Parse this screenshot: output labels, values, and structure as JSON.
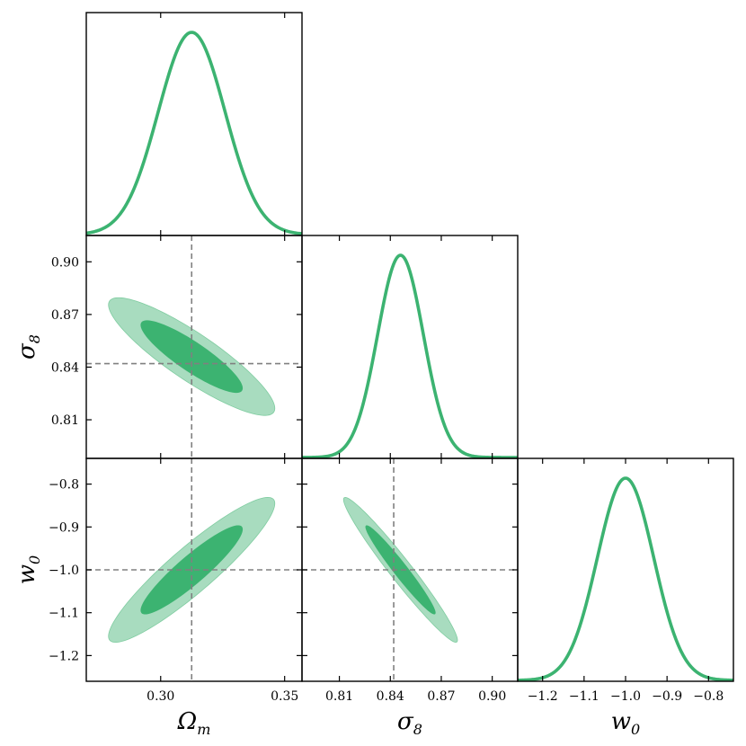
{
  "chart_data": {
    "type": "corner",
    "parameters": [
      {
        "key": "om",
        "label_main": "Ω",
        "label_sub": "m",
        "range": [
          0.27,
          0.357
        ],
        "ticks": [
          {
            "v": 0.3,
            "t": "0.30"
          },
          {
            "v": 0.35,
            "t": "0.35"
          }
        ]
      },
      {
        "key": "s8",
        "label_main": "σ",
        "label_sub": "8",
        "range": [
          0.788,
          0.915
        ],
        "ticks": [
          {
            "v": 0.81,
            "t": "0.81"
          },
          {
            "v": 0.84,
            "t": "0.84"
          },
          {
            "v": 0.87,
            "t": "0.87"
          },
          {
            "v": 0.9,
            "t": "0.90"
          }
        ]
      },
      {
        "key": "w0",
        "label_main": "w",
        "label_sub": "0",
        "range": [
          -1.26,
          -0.74
        ],
        "ticks": [
          {
            "v": -1.2,
            "t": "−1.2"
          },
          {
            "v": -1.1,
            "t": "−1.1"
          },
          {
            "v": -1.0,
            "t": "−1.0"
          },
          {
            "v": -0.9,
            "t": "−0.9"
          },
          {
            "v": -0.8,
            "t": "−0.8"
          }
        ]
      }
    ],
    "fiducial": {
      "om": 0.3125,
      "s8": 0.842,
      "w0": -1.0
    },
    "marginals": [
      {
        "param": "om",
        "mean": 0.3125,
        "sigma": 0.0135
      },
      {
        "param": "s8",
        "mean": 0.846,
        "sigma": 0.0135
      },
      {
        "param": "w0",
        "mean": -1.0,
        "sigma": 0.068
      }
    ],
    "contours": [
      {
        "x": "om",
        "y": "s8",
        "center": [
          0.3125,
          0.846
        ],
        "cov": [
          [
            0.000182,
            -0.00016
          ],
          [
            -0.00016,
            0.000182
          ]
        ]
      },
      {
        "x": "om",
        "y": "w0",
        "center": [
          0.3125,
          -1.0
        ],
        "cov": [
          [
            0.000182,
            0.00084
          ],
          [
            0.00084,
            0.00462
          ]
        ]
      },
      {
        "x": "s8",
        "y": "w0",
        "center": [
          0.846,
          -1.0
        ],
        "cov": [
          [
            0.000182,
            -0.00089
          ],
          [
            -0.00089,
            0.00462
          ]
        ]
      }
    ],
    "levels": [
      "1σ",
      "2σ"
    ],
    "colors": {
      "line": "#3cb371",
      "inner_fill": "#3cb371",
      "outer_fill": "#a8dcbf",
      "outer_stroke": "#7fcca0",
      "fiducial": "#808080",
      "frame": "#000000"
    }
  }
}
